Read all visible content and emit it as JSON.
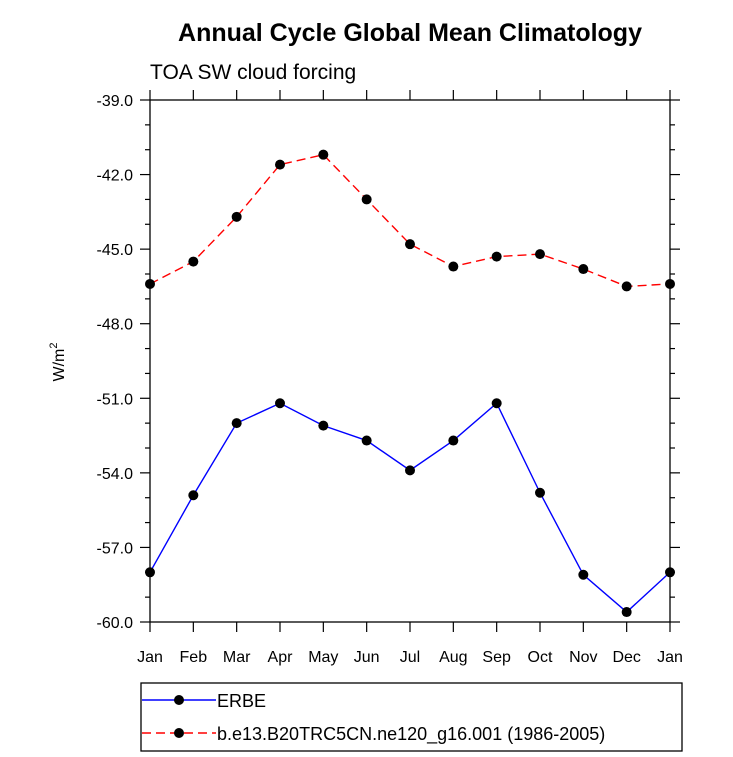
{
  "chart_data": {
    "type": "line",
    "title": "Annual Cycle Global Mean Climatology",
    "subtitle": "TOA SW cloud forcing",
    "ylabel": "W/m",
    "ylabel_sup": "2",
    "xlabel": "",
    "categories": [
      "Jan",
      "Feb",
      "Mar",
      "Apr",
      "May",
      "Jun",
      "Jul",
      "Aug",
      "Sep",
      "Oct",
      "Nov",
      "Dec",
      "Jan"
    ],
    "ylim": [
      -60.0,
      -39.0
    ],
    "yticks": [
      "-39.0",
      "-42.0",
      "-45.0",
      "-48.0",
      "-51.0",
      "-54.0",
      "-57.0",
      "-60.0"
    ],
    "grid": false,
    "legend_position": "bottom",
    "series": [
      {
        "name": "ERBE",
        "color": "#0000ff",
        "dash": "solid",
        "values": [
          -58.0,
          -54.9,
          -52.0,
          -51.2,
          -52.1,
          -52.7,
          -53.9,
          -52.7,
          -51.2,
          -54.8,
          -58.1,
          -59.6,
          -58.0
        ]
      },
      {
        "name": "b.e13.B20TRC5CN.ne120_g16.001 (1986-2005)",
        "color": "#ff0000",
        "dash": "dashed",
        "values": [
          -46.4,
          -45.5,
          -43.7,
          -41.6,
          -41.2,
          -43.0,
          -44.8,
          -45.7,
          -45.3,
          -45.2,
          -45.8,
          -46.5,
          -46.4
        ]
      }
    ]
  }
}
